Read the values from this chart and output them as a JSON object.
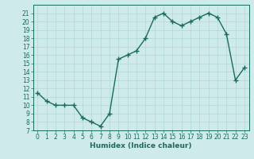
{
  "x": [
    0,
    1,
    2,
    3,
    4,
    5,
    6,
    7,
    8,
    9,
    10,
    11,
    12,
    13,
    14,
    15,
    16,
    17,
    18,
    19,
    20,
    21,
    22,
    23
  ],
  "y": [
    11.5,
    10.5,
    10.0,
    10.0,
    10.0,
    8.5,
    8.0,
    7.5,
    9.0,
    15.5,
    16.0,
    16.5,
    18.0,
    20.5,
    21.0,
    20.0,
    19.5,
    20.0,
    20.5,
    21.0,
    20.5,
    18.5,
    13.0,
    14.5
  ],
  "xlabel": "Humidex (Indice chaleur)",
  "bg_color": "#ceeaea",
  "line_color": "#1a6b5e",
  "grid_color": "#b0d8d8",
  "ylim": [
    7,
    22
  ],
  "xlim": [
    -0.5,
    23.5
  ],
  "yticks": [
    7,
    8,
    9,
    10,
    11,
    12,
    13,
    14,
    15,
    16,
    17,
    18,
    19,
    20,
    21
  ],
  "xticks": [
    0,
    1,
    2,
    3,
    4,
    5,
    6,
    7,
    8,
    9,
    10,
    11,
    12,
    13,
    14,
    15,
    16,
    17,
    18,
    19,
    20,
    21,
    22,
    23
  ],
  "marker": "+",
  "marker_size": 4,
  "line_width": 1.0,
  "tick_fontsize": 5.5,
  "xlabel_fontsize": 6.5
}
